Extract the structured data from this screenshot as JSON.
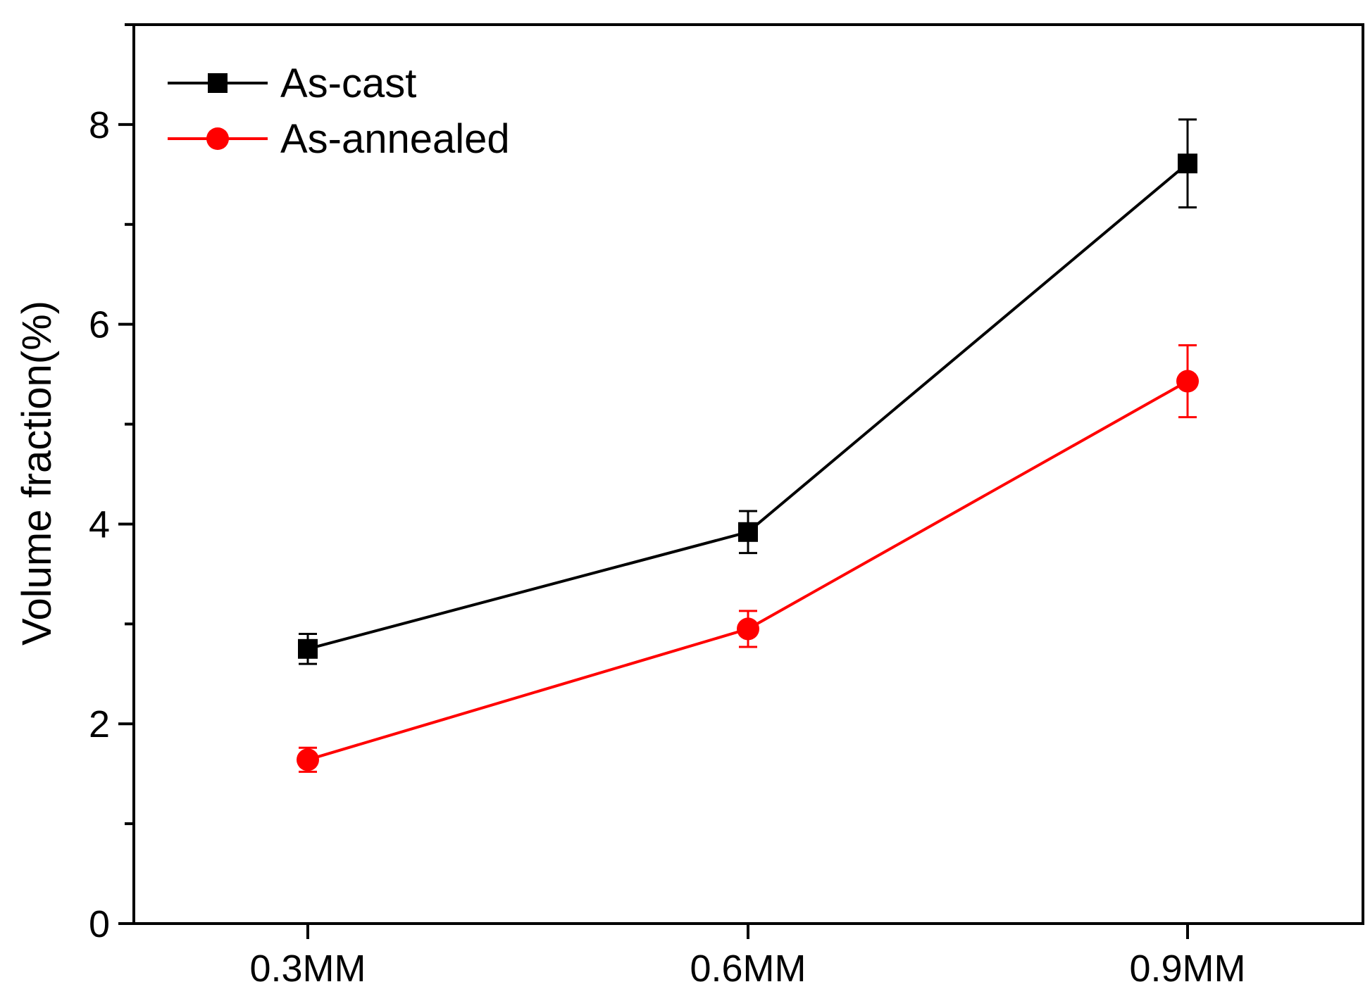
{
  "chart_data": {
    "type": "line",
    "title": "",
    "xlabel": "",
    "ylabel": "Volume fraction(%)",
    "categories": [
      "0.3MM",
      "0.6MM",
      "0.9MM"
    ],
    "ylim": [
      0,
      9
    ],
    "yticks": [
      0,
      2,
      4,
      6,
      8
    ],
    "grid": false,
    "legend_position": "top-left",
    "series": [
      {
        "name": "As-cast",
        "color": "#000000",
        "marker": "square",
        "values": [
          2.75,
          3.92,
          7.61
        ],
        "errors": [
          0.15,
          0.21,
          0.44
        ]
      },
      {
        "name": "As-annealed",
        "color": "#ff0000",
        "marker": "circle",
        "values": [
          1.64,
          2.95,
          5.43
        ],
        "errors": [
          0.12,
          0.18,
          0.36
        ]
      }
    ]
  }
}
